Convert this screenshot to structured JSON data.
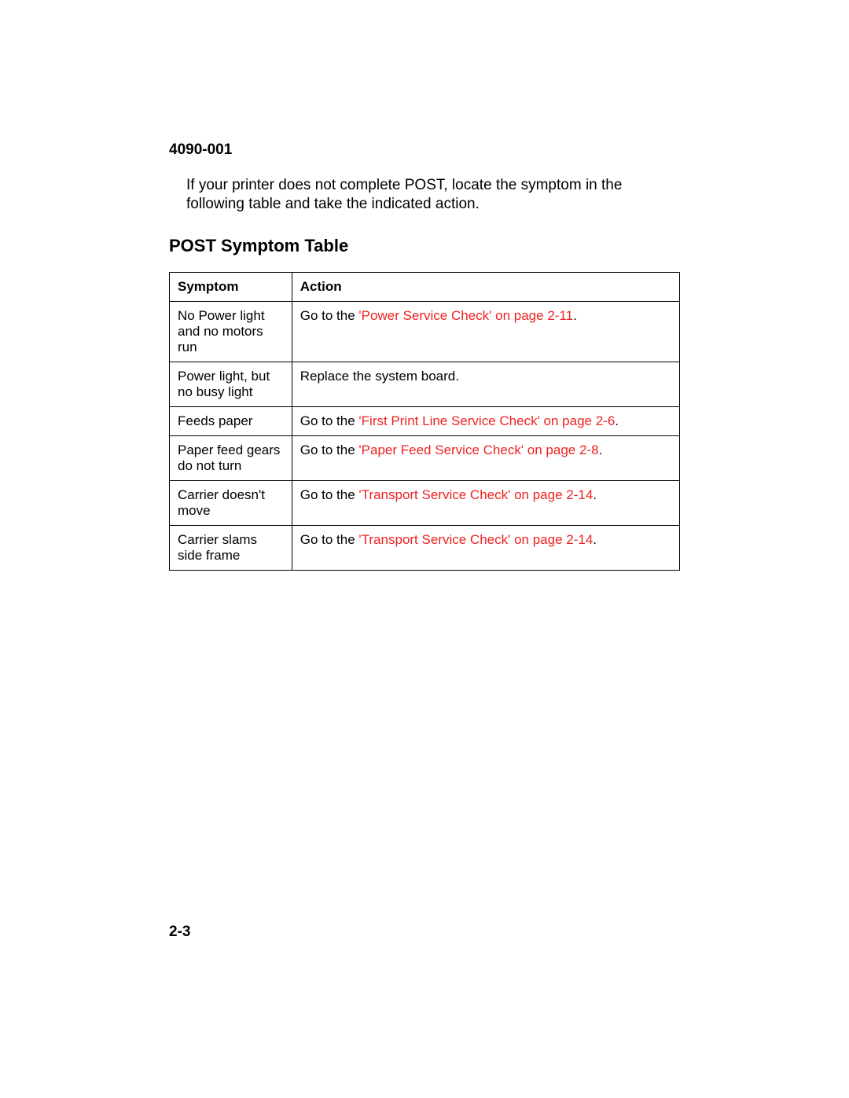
{
  "doc_code": "4090-001",
  "intro": "If your printer does not complete POST, locate the symptom in the following table and take the indicated action.",
  "section_title": "POST Symptom Table",
  "table": {
    "headers": {
      "symptom": "Symptom",
      "action": "Action"
    },
    "rows": [
      {
        "symptom": "No Power light and no motors run",
        "action_prefix": "Go to the ",
        "action_link": "'Power Service Check' on page 2-11",
        "action_suffix": "."
      },
      {
        "symptom": "Power light, but no busy light",
        "action_prefix": "Replace the system board.",
        "action_link": "",
        "action_suffix": ""
      },
      {
        "symptom": "Feeds paper",
        "action_prefix": "Go to the ",
        "action_link": "'First Print Line Service Check' on page 2-6",
        "action_suffix": "."
      },
      {
        "symptom": "Paper feed gears do not turn",
        "action_prefix": "Go to the ",
        "action_link": "'Paper Feed Service Check' on page 2-8",
        "action_suffix": "."
      },
      {
        "symptom": "Carrier doesn't move",
        "action_prefix": "Go to the ",
        "action_link": "'Transport Service Check' on page 2-14",
        "action_suffix": "."
      },
      {
        "symptom": "Carrier slams side frame",
        "action_prefix": "Go to the ",
        "action_link": "'Transport Service Check' on page 2-14",
        "action_suffix": "."
      }
    ]
  },
  "page_number": "2-3",
  "colors": {
    "link": "#ee2222",
    "text": "#000000",
    "background": "#ffffff"
  }
}
